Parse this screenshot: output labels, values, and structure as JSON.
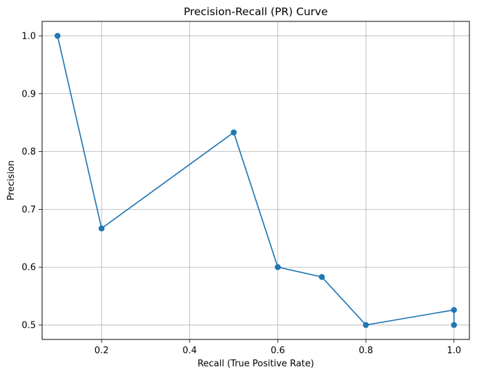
{
  "chart_data": {
    "type": "line",
    "title": "Precision-Recall (PR) Curve",
    "xlabel": "Recall (True Positive Rate)",
    "ylabel": "Precision",
    "xlim": [
      0.065,
      1.035
    ],
    "ylim": [
      0.475,
      1.025
    ],
    "xticks": [
      0.2,
      0.4,
      0.6,
      0.8,
      1.0
    ],
    "xtick_labels": [
      "0.2",
      "0.4",
      "0.6",
      "0.8",
      "1.0"
    ],
    "yticks": [
      0.5,
      0.6,
      0.7,
      0.8,
      0.9,
      1.0
    ],
    "ytick_labels": [
      "0.5",
      "0.6",
      "0.7",
      "0.8",
      "0.9",
      "1.0"
    ],
    "grid": true,
    "series": [
      {
        "x": [
          0.1,
          0.2,
          0.5,
          0.6,
          0.7,
          0.8,
          1.0,
          1.0
        ],
        "y": [
          1.0,
          0.667,
          0.833,
          0.6,
          0.583,
          0.5,
          0.526,
          0.5
        ],
        "color": "#1f77b4",
        "marker": "circle"
      }
    ]
  }
}
